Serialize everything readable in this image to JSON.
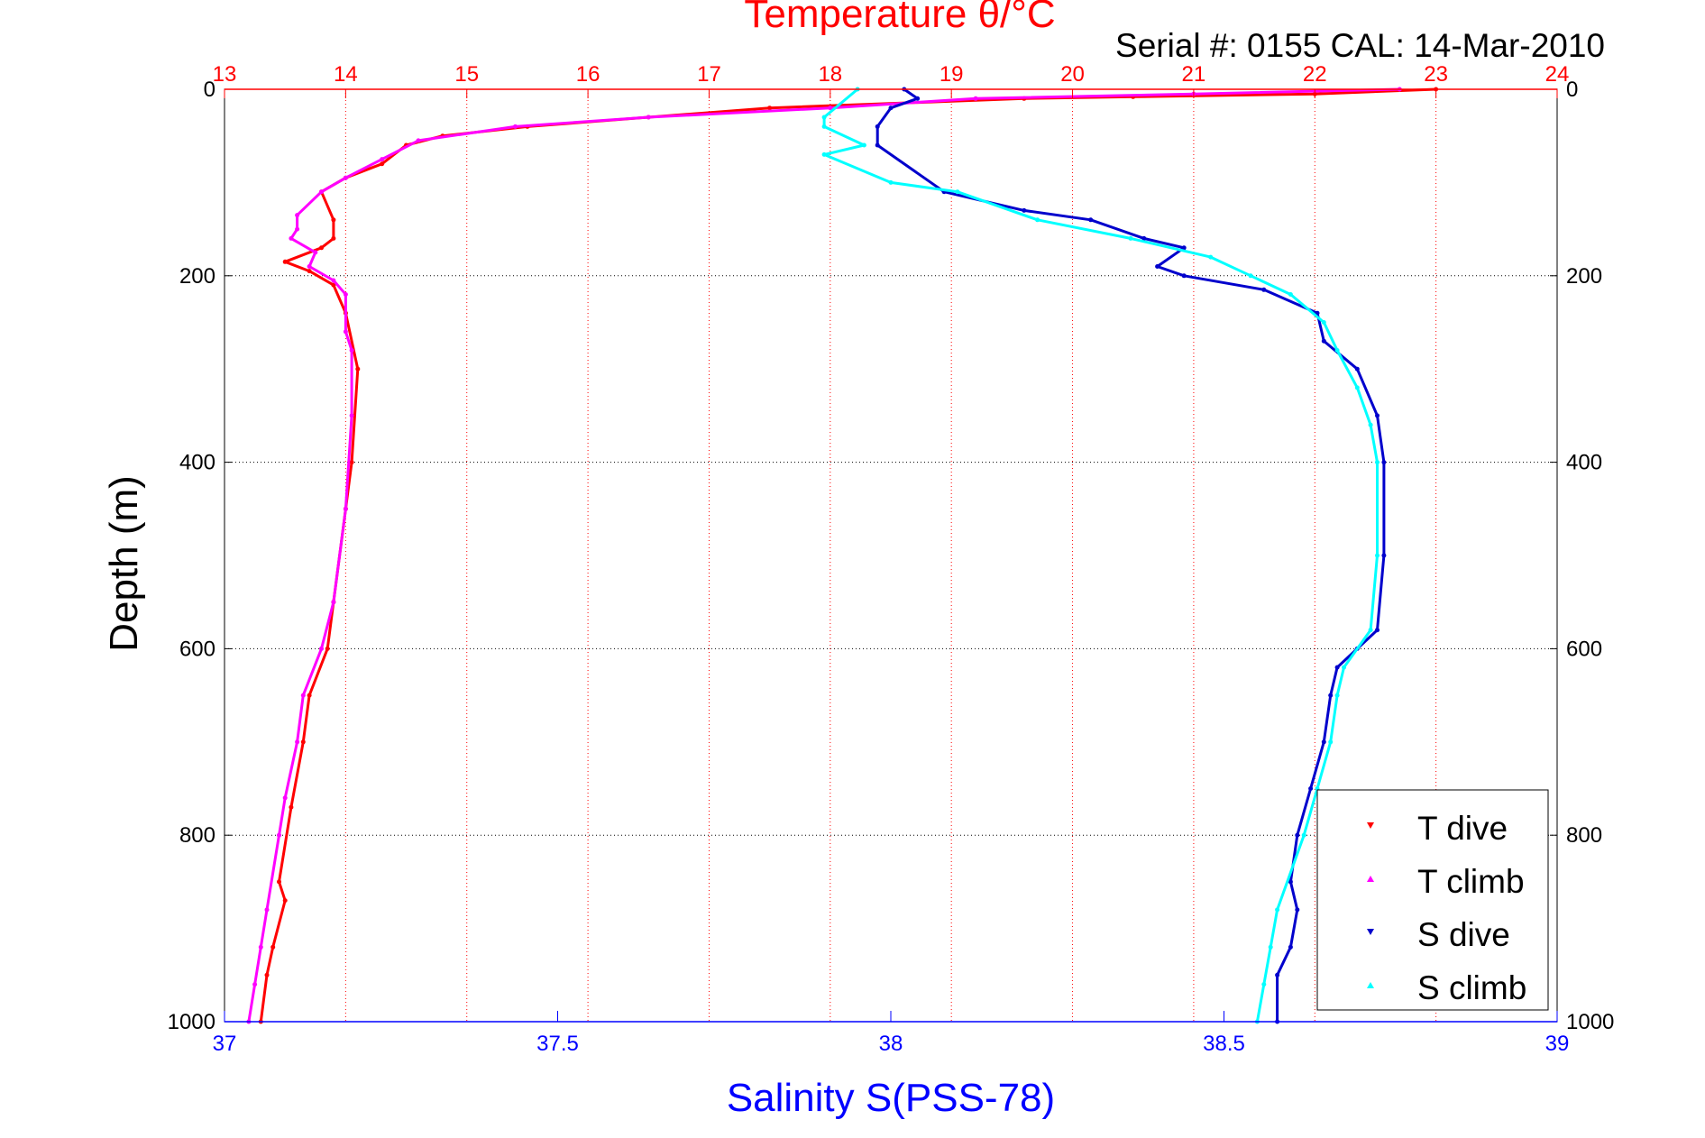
{
  "chart_data": {
    "type": "scatter",
    "title": "Temperature θ/°C",
    "subtitle": "Serial #: 0155  CAL: 14-Mar-2010",
    "xlabel_bottom": "Salinity S(PSS-78)",
    "xlabel_top": "Temperature θ/°C",
    "ylabel": "Depth (m)",
    "ylim": [
      0,
      1000
    ],
    "y_reversed": true,
    "y_ticks": [
      0,
      200,
      400,
      600,
      800,
      1000
    ],
    "x_bottom_lim": [
      37,
      39
    ],
    "x_bottom_ticks": [
      37,
      37.5,
      38,
      38.5,
      39
    ],
    "x_bottom_tick_labels": [
      "37",
      "37.5",
      "38",
      "38.5",
      "39"
    ],
    "x_top_lim": [
      13,
      24
    ],
    "x_top_ticks": [
      13,
      14,
      15,
      16,
      17,
      18,
      19,
      20,
      21,
      22,
      23,
      24
    ],
    "grid": true,
    "legend_position": "bottom-right",
    "colors": {
      "temp_axis": "#ff0000",
      "sal_axis": "#0000ff",
      "t_dive": "#ff0000",
      "t_climb": "#ff00ff",
      "s_dive": "#0000cc",
      "s_climb": "#00ffff"
    },
    "series": [
      {
        "name": "T dive",
        "axis": "temperature",
        "marker": "triangle-down",
        "points": [
          [
            23.0,
            0
          ],
          [
            22.0,
            5
          ],
          [
            20.5,
            8
          ],
          [
            19.6,
            10
          ],
          [
            17.5,
            20
          ],
          [
            16.5,
            30
          ],
          [
            15.5,
            40
          ],
          [
            14.8,
            50
          ],
          [
            14.5,
            60
          ],
          [
            14.3,
            80
          ],
          [
            14.0,
            95
          ],
          [
            13.8,
            110
          ],
          [
            13.9,
            140
          ],
          [
            13.9,
            160
          ],
          [
            13.8,
            170
          ],
          [
            13.5,
            185
          ],
          [
            13.7,
            195
          ],
          [
            13.9,
            210
          ],
          [
            14.0,
            240
          ],
          [
            14.1,
            300
          ],
          [
            14.05,
            400
          ],
          [
            14.0,
            450
          ],
          [
            13.9,
            550
          ],
          [
            13.85,
            600
          ],
          [
            13.7,
            650
          ],
          [
            13.65,
            700
          ],
          [
            13.55,
            770
          ],
          [
            13.45,
            850
          ],
          [
            13.5,
            870
          ],
          [
            13.4,
            920
          ],
          [
            13.35,
            950
          ],
          [
            13.3,
            1000
          ]
        ]
      },
      {
        "name": "T climb",
        "axis": "temperature",
        "marker": "triangle-up",
        "points": [
          [
            22.7,
            0
          ],
          [
            21.0,
            5
          ],
          [
            19.2,
            10
          ],
          [
            18.0,
            20
          ],
          [
            16.5,
            30
          ],
          [
            15.4,
            40
          ],
          [
            14.6,
            55
          ],
          [
            14.3,
            75
          ],
          [
            14.0,
            95
          ],
          [
            13.8,
            110
          ],
          [
            13.6,
            135
          ],
          [
            13.6,
            150
          ],
          [
            13.55,
            160
          ],
          [
            13.75,
            175
          ],
          [
            13.7,
            190
          ],
          [
            13.9,
            205
          ],
          [
            14.0,
            220
          ],
          [
            14.0,
            260
          ],
          [
            14.05,
            280
          ],
          [
            14.05,
            350
          ],
          [
            14.0,
            450
          ],
          [
            13.9,
            550
          ],
          [
            13.8,
            600
          ],
          [
            13.65,
            650
          ],
          [
            13.6,
            700
          ],
          [
            13.5,
            760
          ],
          [
            13.45,
            800
          ],
          [
            13.35,
            880
          ],
          [
            13.3,
            920
          ],
          [
            13.25,
            960
          ],
          [
            13.2,
            1000
          ]
        ]
      },
      {
        "name": "S dive",
        "axis": "salinity",
        "marker": "triangle-down",
        "points": [
          [
            38.02,
            0
          ],
          [
            38.04,
            10
          ],
          [
            38.0,
            20
          ],
          [
            37.98,
            40
          ],
          [
            37.98,
            60
          ],
          [
            38.08,
            110
          ],
          [
            38.2,
            130
          ],
          [
            38.3,
            140
          ],
          [
            38.38,
            160
          ],
          [
            38.44,
            170
          ],
          [
            38.4,
            190
          ],
          [
            38.44,
            200
          ],
          [
            38.56,
            215
          ],
          [
            38.64,
            240
          ],
          [
            38.65,
            270
          ],
          [
            38.7,
            300
          ],
          [
            38.73,
            350
          ],
          [
            38.74,
            400
          ],
          [
            38.74,
            500
          ],
          [
            38.73,
            580
          ],
          [
            38.7,
            600
          ],
          [
            38.67,
            620
          ],
          [
            38.66,
            650
          ],
          [
            38.65,
            700
          ],
          [
            38.63,
            750
          ],
          [
            38.61,
            800
          ],
          [
            38.6,
            850
          ],
          [
            38.61,
            880
          ],
          [
            38.6,
            920
          ],
          [
            38.58,
            950
          ],
          [
            38.58,
            1000
          ]
        ]
      },
      {
        "name": "S climb",
        "axis": "salinity",
        "marker": "triangle-up",
        "points": [
          [
            37.95,
            0
          ],
          [
            37.9,
            30
          ],
          [
            37.9,
            40
          ],
          [
            37.96,
            60
          ],
          [
            37.9,
            70
          ],
          [
            38.0,
            100
          ],
          [
            38.1,
            110
          ],
          [
            38.22,
            140
          ],
          [
            38.36,
            160
          ],
          [
            38.48,
            180
          ],
          [
            38.54,
            200
          ],
          [
            38.6,
            220
          ],
          [
            38.65,
            250
          ],
          [
            38.67,
            280
          ],
          [
            38.7,
            320
          ],
          [
            38.72,
            360
          ],
          [
            38.73,
            400
          ],
          [
            38.73,
            500
          ],
          [
            38.72,
            580
          ],
          [
            38.68,
            620
          ],
          [
            38.67,
            650
          ],
          [
            38.66,
            700
          ],
          [
            38.64,
            750
          ],
          [
            38.62,
            800
          ],
          [
            38.58,
            880
          ],
          [
            38.57,
            920
          ],
          [
            38.56,
            960
          ],
          [
            38.55,
            1000
          ]
        ]
      }
    ]
  }
}
